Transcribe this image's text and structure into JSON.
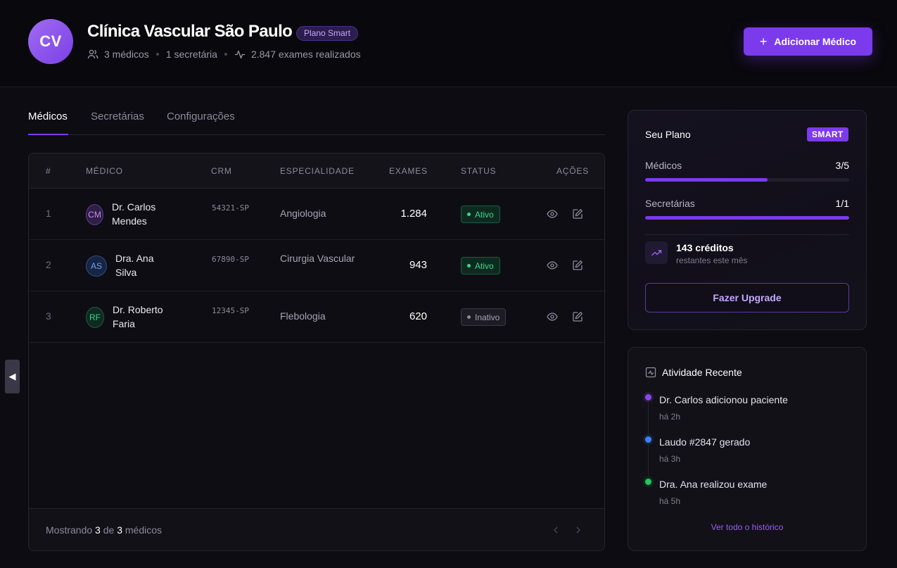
{
  "header": {
    "avatar_initials": "CV",
    "clinic_name": "Clínica Vascular São Paulo",
    "plan_badge": "Plano Smart",
    "doctors_count": "3 médicos",
    "secretaries_count": "1 secretária",
    "exams_count": "2.847 exames realizados",
    "add_button_label": "Adicionar Médico",
    "accent_color": "#7c3aed"
  },
  "tabs": [
    {
      "label": "Médicos",
      "active": true
    },
    {
      "label": "Secretárias",
      "active": false
    },
    {
      "label": "Configurações",
      "active": false
    }
  ],
  "table": {
    "columns": [
      "#",
      "MÉDICO",
      "CRM",
      "ESPECIALIDADE",
      "EXAMES",
      "STATUS",
      "AÇÕES"
    ],
    "rows": [
      {
        "index": "1",
        "initials": "CM",
        "name": "Dr. Carlos Mendes",
        "crm": "54321-SP",
        "specialty": "Angiologia",
        "exams": "1.284",
        "status": "Ativo",
        "avatar_color": "#c48cf0"
      },
      {
        "index": "2",
        "initials": "AS",
        "name": "Dra. Ana Silva",
        "crm": "67890-SP",
        "specialty": "Cirurgia Vascular",
        "exams": "943",
        "status": "Ativo",
        "avatar_color": "#6ca1f5"
      },
      {
        "index": "3",
        "initials": "RF",
        "name": "Dr. Roberto Faria",
        "crm": "12345-SP",
        "specialty": "Flebologia",
        "exams": "620",
        "status": "Inativo",
        "avatar_color": "#3dd68c"
      }
    ],
    "footer": {
      "prefix": "Mostrando",
      "shown": "3",
      "of": "de",
      "total": "3",
      "suffix": "médicos"
    }
  },
  "plan_card": {
    "title": "Seu Plano",
    "badge": "SMART",
    "doctors_label": "Médicos",
    "doctors_value": "3/5",
    "doctors_fraction": 0.6,
    "secretaries_label": "Secretárias",
    "secretaries_value": "1/1",
    "secretaries_fraction": 1.0,
    "credits": "143 créditos",
    "credits_sub": "restantes este mês",
    "upgrade_label": "Fazer Upgrade"
  },
  "activity": {
    "title": "Atividade Recente",
    "items": [
      {
        "text": "Dr. Carlos adicionou paciente",
        "time": "há 2h",
        "color": "#8b45f0"
      },
      {
        "text": "Laudo #2847 gerado",
        "time": "há 3h",
        "color": "#3b82f6"
      },
      {
        "text": "Dra. Ana realizou exame",
        "time": "há 5h",
        "color": "#22c55e"
      }
    ],
    "history_link": "Ver todo o histórico"
  },
  "side_toggle_icon": "triangle-left-icon"
}
